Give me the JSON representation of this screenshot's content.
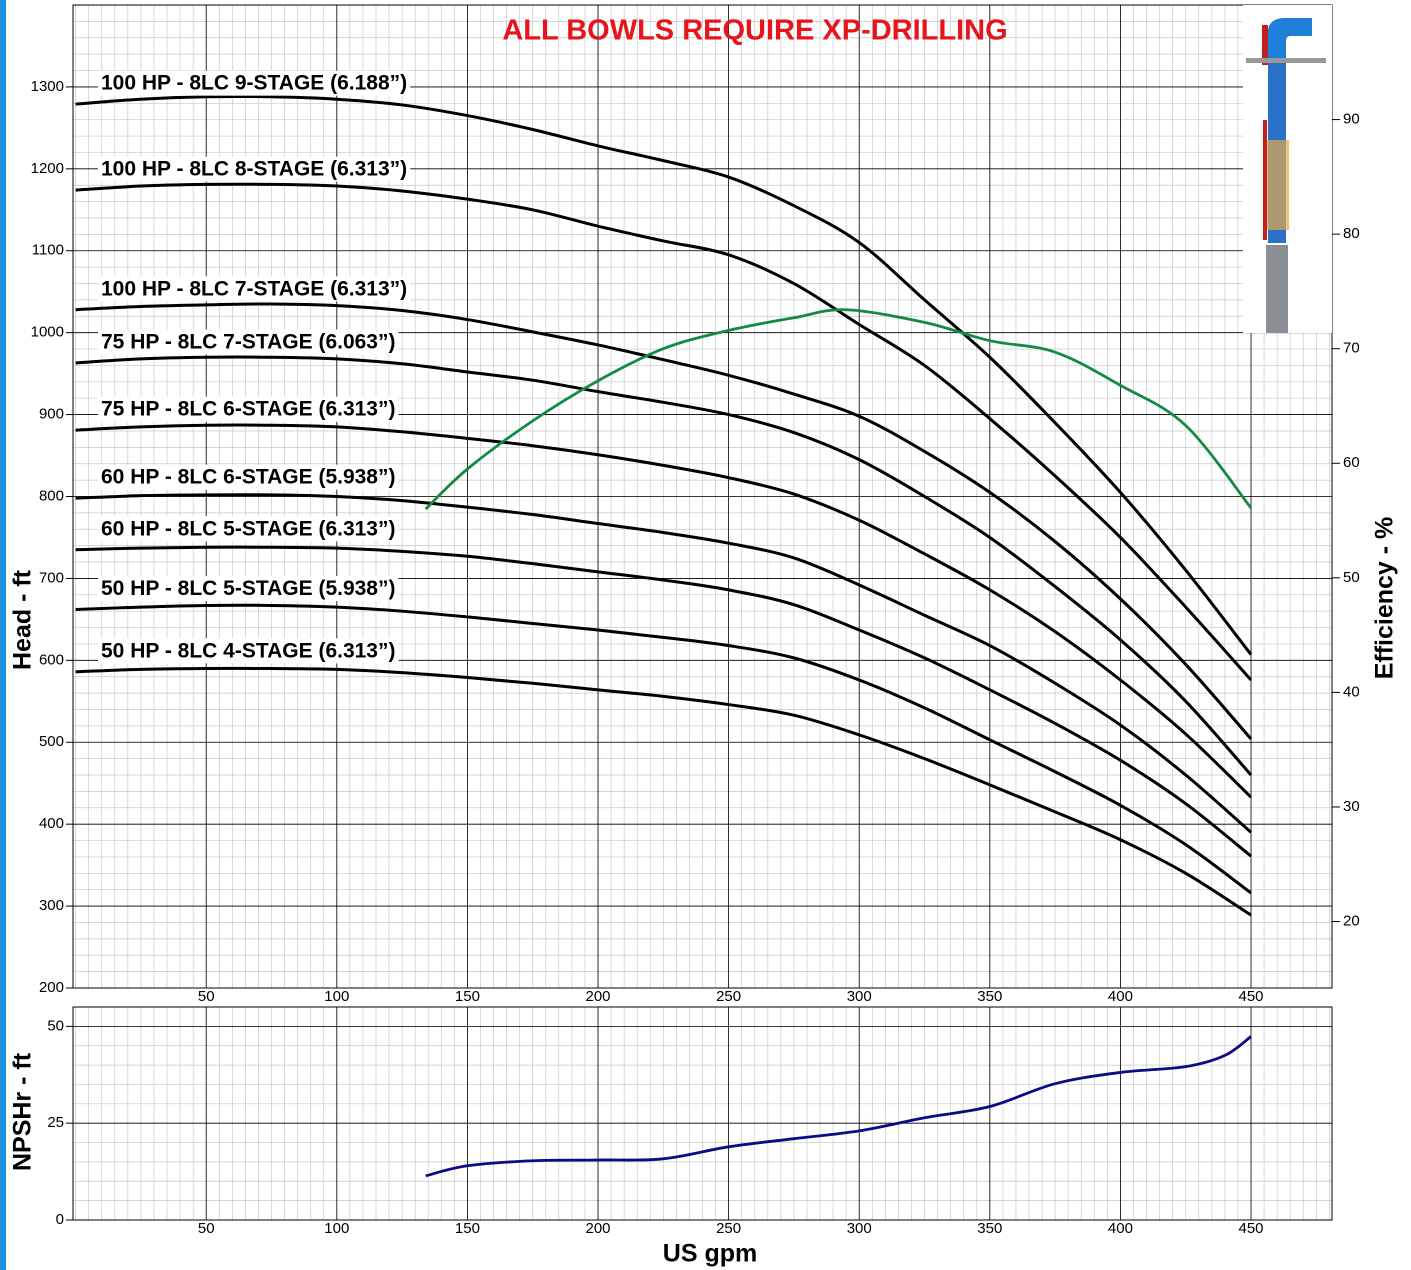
{
  "chart_data": [
    {
      "type": "line",
      "title": "ALL BOWLS REQUIRE XP-DRILLING",
      "ylabel": "Head - ft",
      "y2label": "Efficiency - %",
      "xlim": [
        -1,
        481
      ],
      "xticks": [
        50,
        100,
        150,
        200,
        250,
        300,
        350,
        400,
        450
      ],
      "ylim": [
        200,
        1400
      ],
      "yticks": [
        200,
        300,
        400,
        500,
        600,
        700,
        800,
        900,
        1000,
        1100,
        1200,
        1300
      ],
      "y2lim": [
        14.2,
        100
      ],
      "y2ticks": [
        20,
        30,
        40,
        50,
        60,
        70,
        80,
        90
      ],
      "grid": true,
      "minor_grid": {
        "x_step": 5,
        "y_step": 20
      },
      "x": [
        0,
        25,
        50,
        75,
        100,
        125,
        150,
        175,
        200,
        225,
        250,
        275,
        300,
        325,
        350,
        375,
        400,
        425,
        450
      ],
      "series": [
        {
          "name": "100 HP - 8LC 9-STAGE (6.188”)",
          "color": "#000000",
          "values": [
            1279,
            1285,
            1288,
            1288,
            1285,
            1278,
            1265,
            1248,
            1228,
            1210,
            1190,
            1155,
            1110,
            1040,
            970,
            890,
            805,
            710,
            607
          ]
        },
        {
          "name": "100 HP - 8LC 8-STAGE (6.313”)",
          "color": "#000000",
          "values": [
            1174,
            1179,
            1181,
            1181,
            1179,
            1173,
            1163,
            1150,
            1130,
            1112,
            1095,
            1060,
            1010,
            960,
            895,
            825,
            750,
            665,
            576
          ]
        },
        {
          "name": "100 HP - 8LC 7-STAGE (6.313”)",
          "color": "#000000",
          "values": [
            1028,
            1032,
            1034,
            1035,
            1033,
            1027,
            1016,
            1001,
            985,
            967,
            948,
            925,
            898,
            855,
            805,
            745,
            675,
            595,
            504
          ]
        },
        {
          "name": "75 HP - 8LC 7-STAGE (6.063”)",
          "color": "#000000",
          "values": [
            963,
            968,
            970,
            970,
            968,
            962,
            952,
            942,
            928,
            915,
            900,
            878,
            845,
            800,
            750,
            690,
            625,
            550,
            460
          ]
        },
        {
          "name": "75 HP - 8LC 6-STAGE (6.313”)",
          "color": "#000000",
          "values": [
            881,
            885,
            887,
            887,
            885,
            879,
            871,
            862,
            851,
            838,
            823,
            803,
            771,
            730,
            686,
            635,
            576,
            510,
            433
          ]
        },
        {
          "name": "60 HP - 8LC 6-STAGE (5.938”)",
          "color": "#000000",
          "values": [
            798,
            801,
            802,
            802,
            800,
            795,
            787,
            778,
            767,
            756,
            743,
            725,
            692,
            655,
            618,
            572,
            521,
            460,
            390
          ]
        },
        {
          "name": "60 HP - 8LC 5-STAGE (6.313”)",
          "color": "#000000",
          "values": [
            735,
            737,
            738,
            738,
            737,
            733,
            727,
            718,
            708,
            698,
            686,
            668,
            637,
            603,
            564,
            523,
            478,
            425,
            361
          ]
        },
        {
          "name": "50 HP - 8LC 5-STAGE (5.938”)",
          "color": "#000000",
          "values": [
            662,
            665,
            667,
            667,
            665,
            660,
            653,
            645,
            637,
            628,
            618,
            603,
            576,
            542,
            503,
            464,
            423,
            375,
            316
          ]
        },
        {
          "name": "50 HP - 8LC 4-STAGE (6.313”)",
          "color": "#000000",
          "values": [
            586,
            589,
            590,
            590,
            589,
            585,
            579,
            572,
            564,
            556,
            546,
            533,
            509,
            480,
            448,
            415,
            381,
            340,
            289
          ]
        },
        {
          "color": "#138a45",
          "axis": "y2",
          "x": [
            134,
            150,
            175,
            200,
            225,
            250,
            275,
            295,
            325,
            350,
            375,
            400,
            425,
            450
          ],
          "values": [
            56,
            59.5,
            63.7,
            67.2,
            70,
            71.6,
            72.7,
            73.4,
            72.3,
            70.7,
            69.7,
            66.8,
            63.3,
            56.1
          ]
        }
      ]
    },
    {
      "type": "line",
      "ylabel": "NPSHr - ft",
      "xlabel": "US gpm",
      "xlim": [
        -1,
        481
      ],
      "xticks": [
        50,
        100,
        150,
        200,
        250,
        300,
        350,
        400,
        450
      ],
      "ylim": [
        0,
        55
      ],
      "yticks": [
        0,
        25,
        50
      ],
      "grid": true,
      "minor_grid": {
        "x_step": 5,
        "y_step": 5
      },
      "series": [
        {
          "color": "#0b0b85",
          "x": [
            134,
            150,
            175,
            200,
            225,
            250,
            275,
            300,
            325,
            350,
            375,
            400,
            425,
            440,
            450
          ],
          "values": [
            11.4,
            14,
            15.3,
            15.5,
            15.8,
            18.9,
            21,
            23,
            26.4,
            29.3,
            35.2,
            38.1,
            39.6,
            42.5,
            47.4
          ]
        }
      ]
    }
  ]
}
